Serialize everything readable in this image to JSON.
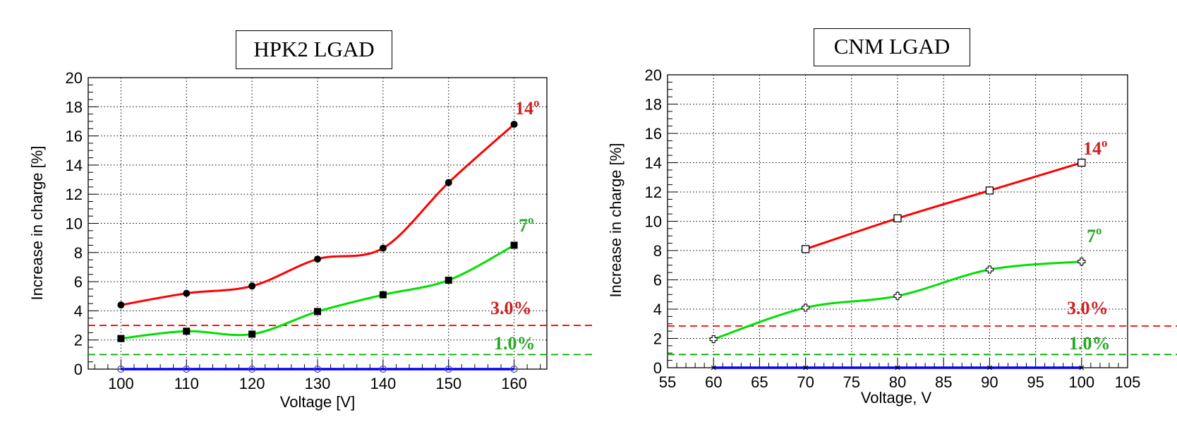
{
  "chart_data": [
    {
      "type": "line",
      "title": "HPK2 LGAD",
      "xlabel": "Voltage [V]",
      "ylabel": "Increase in charge [%]",
      "xlim": [
        95,
        165
      ],
      "ylim": [
        0,
        20
      ],
      "x_ticks": [
        "100",
        "110",
        "120",
        "130",
        "140",
        "150",
        "160"
      ],
      "y_ticks": [
        "0",
        "2",
        "4",
        "6",
        "8",
        "10",
        "12",
        "14",
        "16",
        "18",
        "20"
      ],
      "grid": true,
      "series": [
        {
          "name": "14º",
          "color": "#ff0000",
          "marker": "filled-circle",
          "x": [
            100,
            110,
            120,
            130,
            140,
            150,
            160
          ],
          "y": [
            4.4,
            5.2,
            5.7,
            7.55,
            8.3,
            12.8,
            16.8
          ]
        },
        {
          "name": "7º",
          "color": "#00e000",
          "marker": "filled-square",
          "x": [
            100,
            110,
            120,
            130,
            140,
            150,
            160
          ],
          "y": [
            2.1,
            2.6,
            2.4,
            3.95,
            5.1,
            6.1,
            8.5
          ]
        },
        {
          "color": "#0000ff",
          "marker": "open-circle",
          "x": [
            100,
            110,
            120,
            130,
            140,
            150,
            160
          ],
          "y": [
            0,
            0,
            0,
            0,
            0,
            0,
            0
          ]
        }
      ],
      "thresholds": [
        {
          "value": 3.0,
          "label": "3.0%",
          "color": "#ff0000"
        },
        {
          "value": 1.0,
          "label": "1.0%",
          "color": "#00aa00"
        }
      ],
      "series_labels": [
        {
          "text": "14",
          "sup": "o",
          "color": "#cc2222"
        },
        {
          "text": "7",
          "sup": "o",
          "color": "#22aa22"
        }
      ]
    },
    {
      "type": "line",
      "title": "CNM LGAD",
      "xlabel": "Voltage, V",
      "ylabel": "Increase in charge [%]",
      "xlim": [
        55,
        105
      ],
      "ylim": [
        0,
        20
      ],
      "x_ticks": [
        "55",
        "60",
        "65",
        "70",
        "75",
        "80",
        "85",
        "90",
        "95",
        "100",
        "105"
      ],
      "y_ticks": [
        "0",
        "2",
        "4",
        "6",
        "8",
        "10",
        "12",
        "14",
        "16",
        "18",
        "20"
      ],
      "grid": true,
      "series": [
        {
          "name": "14º",
          "color": "#ff0000",
          "marker": "open-square",
          "x": [
            70,
            80,
            90,
            100
          ],
          "y": [
            8.1,
            10.2,
            12.1,
            14.0
          ]
        },
        {
          "name": "7º",
          "color": "#00e000",
          "marker": "open-cross",
          "x": [
            60,
            70,
            80,
            90,
            100
          ],
          "y": [
            1.95,
            4.1,
            4.9,
            6.7,
            7.25
          ]
        },
        {
          "color": "#0000ff",
          "marker": "star",
          "x": [
            60,
            70,
            80,
            90,
            100
          ],
          "y": [
            0,
            0,
            0,
            0,
            0
          ]
        }
      ],
      "thresholds": [
        {
          "value": 2.85,
          "label": "3.0%",
          "color": "#ff0000"
        },
        {
          "value": 0.9,
          "label": "1.0%",
          "color": "#00aa00"
        }
      ],
      "series_labels": [
        {
          "text": "14",
          "sup": "o",
          "color": "#cc2222"
        },
        {
          "text": "7",
          "sup": "o",
          "color": "#22aa22"
        }
      ]
    }
  ]
}
